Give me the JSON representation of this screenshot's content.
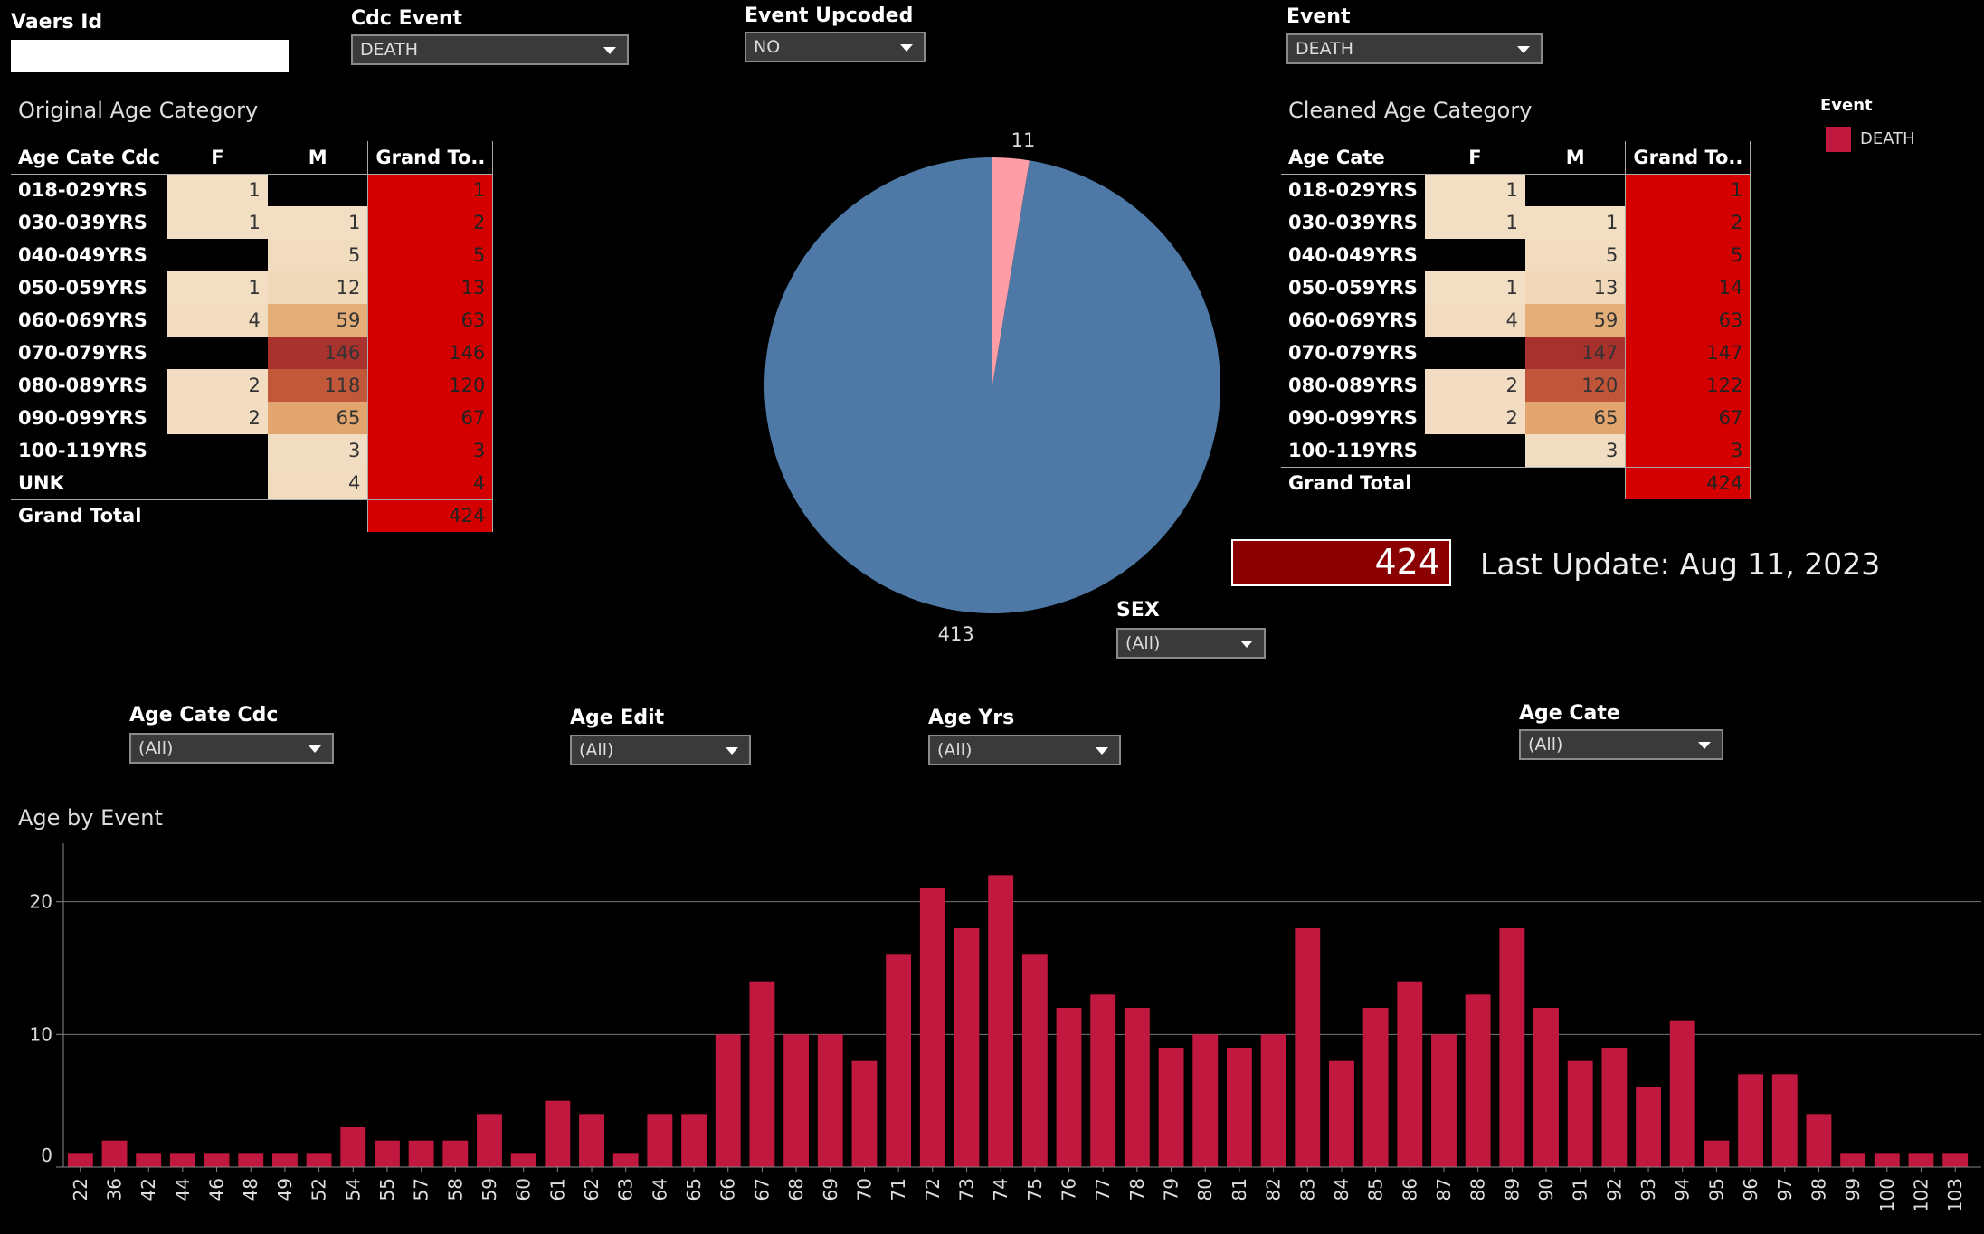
{
  "filters": {
    "vaers_id": {
      "label": "Vaers Id",
      "value": ""
    },
    "cdc_event": {
      "label": "Cdc Event",
      "value": "DEATH"
    },
    "event_upcoded": {
      "label": "Event Upcoded",
      "value": "NO"
    },
    "event": {
      "label": "Event",
      "value": "DEATH"
    },
    "sex": {
      "label": "SEX",
      "value": "(All)"
    },
    "age_cate_cdc": {
      "label": "Age Cate Cdc",
      "value": "(All)"
    },
    "age_edit": {
      "label": "Age Edit",
      "value": "(All)"
    },
    "age_yrs": {
      "label": "Age Yrs",
      "value": "(All)"
    },
    "age_cate": {
      "label": "Age Cate",
      "value": "(All)"
    }
  },
  "original_table": {
    "title": "Original Age Category",
    "headers": [
      "Age Cate Cdc",
      "F",
      "M",
      "Grand To.."
    ],
    "rows": [
      {
        "label": "018-029YRS",
        "f": "1",
        "m": "",
        "gt": "1"
      },
      {
        "label": "030-039YRS",
        "f": "1",
        "m": "1",
        "gt": "2"
      },
      {
        "label": "040-049YRS",
        "f": "",
        "m": "5",
        "gt": "5"
      },
      {
        "label": "050-059YRS",
        "f": "1",
        "m": "12",
        "gt": "13"
      },
      {
        "label": "060-069YRS",
        "f": "4",
        "m": "59",
        "gt": "63"
      },
      {
        "label": "070-079YRS",
        "f": "",
        "m": "146",
        "gt": "146"
      },
      {
        "label": "080-089YRS",
        "f": "2",
        "m": "118",
        "gt": "120"
      },
      {
        "label": "090-099YRS",
        "f": "2",
        "m": "65",
        "gt": "67"
      },
      {
        "label": "100-119YRS",
        "f": "",
        "m": "3",
        "gt": "3"
      },
      {
        "label": "UNK",
        "f": "",
        "m": "4",
        "gt": "4"
      }
    ],
    "total": {
      "label": "Grand Total",
      "gt": "424"
    }
  },
  "cleaned_table": {
    "title": "Cleaned Age Category",
    "headers": [
      "Age Cate",
      "F",
      "M",
      "Grand To.."
    ],
    "rows": [
      {
        "label": "018-029YRS",
        "f": "1",
        "m": "",
        "gt": "1"
      },
      {
        "label": "030-039YRS",
        "f": "1",
        "m": "1",
        "gt": "2"
      },
      {
        "label": "040-049YRS",
        "f": "",
        "m": "5",
        "gt": "5"
      },
      {
        "label": "050-059YRS",
        "f": "1",
        "m": "13",
        "gt": "14"
      },
      {
        "label": "060-069YRS",
        "f": "4",
        "m": "59",
        "gt": "63"
      },
      {
        "label": "070-079YRS",
        "f": "",
        "m": "147",
        "gt": "147"
      },
      {
        "label": "080-089YRS",
        "f": "2",
        "m": "120",
        "gt": "122"
      },
      {
        "label": "090-099YRS",
        "f": "2",
        "m": "65",
        "gt": "67"
      },
      {
        "label": "100-119YRS",
        "f": "",
        "m": "3",
        "gt": "3"
      }
    ],
    "total": {
      "label": "Grand Total",
      "gt": "424"
    }
  },
  "legend": {
    "title": "Event",
    "items": [
      {
        "label": "DEATH",
        "color": "#c0183e"
      }
    ]
  },
  "kpi": {
    "value": "424",
    "last_update": "Last Update: Aug 11, 2023"
  },
  "colors": {
    "blue": "#4e79a7",
    "pink": "#ff9da7",
    "bar": "#c0183e",
    "total_red": "#d40000",
    "kpi_red": "#8b0000"
  },
  "chart_data": [
    {
      "type": "pie",
      "labels": [
        "11",
        "413"
      ],
      "values": [
        11,
        413
      ],
      "colors": [
        "#ff9da7",
        "#4e79a7"
      ]
    },
    {
      "type": "bar",
      "title": "Age by Event",
      "categories": [
        "22",
        "36",
        "42",
        "44",
        "46",
        "48",
        "49",
        "52",
        "54",
        "55",
        "57",
        "58",
        "59",
        "60",
        "61",
        "62",
        "63",
        "64",
        "65",
        "66",
        "67",
        "68",
        "69",
        "70",
        "71",
        "72",
        "73",
        "74",
        "75",
        "76",
        "77",
        "78",
        "79",
        "80",
        "81",
        "82",
        "83",
        "84",
        "85",
        "86",
        "87",
        "88",
        "89",
        "90",
        "91",
        "92",
        "93",
        "94",
        "95",
        "96",
        "97",
        "98",
        "99",
        "100",
        "102",
        "103"
      ],
      "values": [
        1,
        2,
        1,
        1,
        1,
        1,
        1,
        1,
        3,
        2,
        2,
        2,
        4,
        1,
        5,
        4,
        1,
        4,
        4,
        10,
        14,
        10,
        10,
        8,
        16,
        21,
        18,
        22,
        16,
        12,
        13,
        12,
        9,
        10,
        9,
        10,
        18,
        8,
        12,
        14,
        10,
        13,
        18,
        12,
        8,
        9,
        6,
        11,
        2,
        7,
        7,
        4,
        1,
        1,
        1,
        1
      ],
      "ylim": [
        0,
        24
      ],
      "yticks": [
        0,
        10,
        20
      ],
      "grid": true
    }
  ]
}
